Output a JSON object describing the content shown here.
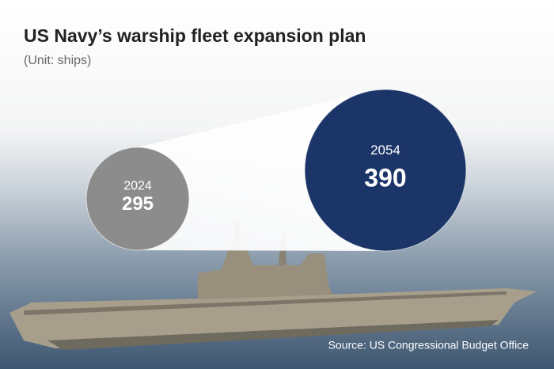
{
  "chart_data": {
    "type": "bubble",
    "title": "US Navy’s warship fleet expansion plan",
    "subtitle": "(Unit: ships)",
    "categories": [
      "2024",
      "2054"
    ],
    "values": [
      295,
      390
    ],
    "colors": [
      "#8c8c8c",
      "#1c3568"
    ],
    "source": "Source: US Congressional  Budget Office"
  }
}
